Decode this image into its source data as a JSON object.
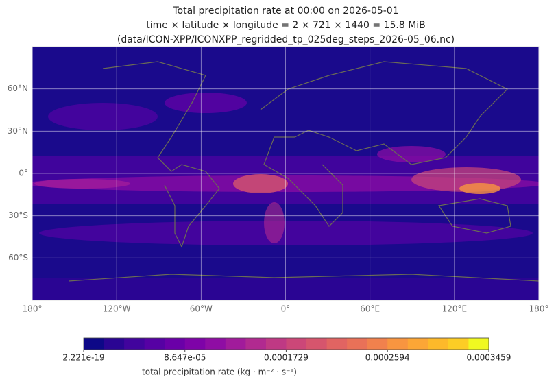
{
  "chart_data": {
    "type": "map",
    "title_lines": [
      "Total precipitation rate at 00:00 on 2026-05-01",
      "time × latitude × longitude = 2 × 721 × 1440 = 15.8 MiB",
      "(data/ICON-XPP/ICONXPP_regridded_tp_025deg_steps_2026-05_06.nc)"
    ],
    "xlim": [
      -180,
      180
    ],
    "ylim": [
      -90,
      90
    ],
    "xticks": [
      {
        "value": -180,
        "label": "180°"
      },
      {
        "value": -120,
        "label": "120°W"
      },
      {
        "value": -60,
        "label": "60°W"
      },
      {
        "value": 0,
        "label": "0°"
      },
      {
        "value": 60,
        "label": "60°E"
      },
      {
        "value": 120,
        "label": "120°E"
      },
      {
        "value": 180,
        "label": "180°"
      }
    ],
    "yticks": [
      {
        "value": -60,
        "label": "60°S"
      },
      {
        "value": -30,
        "label": "30°S"
      },
      {
        "value": 0,
        "label": "0°"
      },
      {
        "value": 30,
        "label": "30°N"
      },
      {
        "value": 60,
        "label": "60°N"
      }
    ],
    "grid": true,
    "colorbar": {
      "label": "total precipitation rate (kg · m⁻² · s⁻¹)",
      "lim": [
        2.221e-19,
        0.0003459
      ],
      "ticks": [
        2.221e-19,
        {
          "value": 8.647e-05,
          "label": "8.647e-05"
        },
        0.0001729,
        0.0002594,
        0.0003459
      ],
      "colors": [
        "#0d0887",
        "#2a0593",
        "#41049d",
        "#5601a4",
        "#6a00a8",
        "#7e03a8",
        "#8f0da4",
        "#a11b9b",
        "#b12a90",
        "#bf3984",
        "#cc4778",
        "#d6556d",
        "#e16462",
        "#e97158",
        "#f1814d",
        "#f89540",
        "#fca636",
        "#fdb92a",
        "#fccd25",
        "#f0f921"
      ]
    }
  }
}
